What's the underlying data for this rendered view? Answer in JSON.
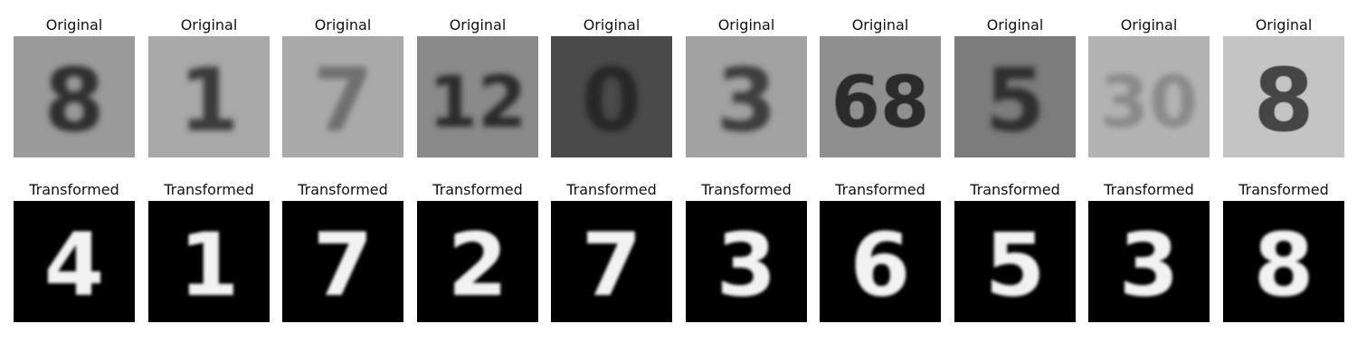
{
  "rows": [
    {
      "title": "Original",
      "cells": [
        {
          "glyph": "8",
          "bg": "#9a9a9a",
          "fg": "#2e2e2e",
          "style": "blur"
        },
        {
          "glyph": "1",
          "bg": "#a8a8a8",
          "fg": "#3a3a3a",
          "style": "blur"
        },
        {
          "glyph": "7",
          "bg": "#a9a9a9",
          "fg": "#707070",
          "style": "blur"
        },
        {
          "glyph": "12",
          "bg": "#8a8a8a",
          "fg": "#2a2a2a",
          "style": "blur"
        },
        {
          "glyph": "0",
          "bg": "#4a4a4a",
          "fg": "#262626",
          "style": "blur"
        },
        {
          "glyph": "3",
          "bg": "#a2a2a2",
          "fg": "#3c3c3c",
          "style": "blur"
        },
        {
          "glyph": "68",
          "bg": "#8f8f8f",
          "fg": "#2c2c2c",
          "style": "sharp"
        },
        {
          "glyph": "5",
          "bg": "#7c7c7c",
          "fg": "#2f2f2f",
          "style": "blur"
        },
        {
          "glyph": "30",
          "bg": "#b3b3b3",
          "fg": "#8a8a8a",
          "style": "blur"
        },
        {
          "glyph": "8",
          "bg": "#c4c4c4",
          "fg": "#444444",
          "style": "sharp"
        }
      ]
    },
    {
      "title": "Transformed",
      "cells": [
        {
          "glyph": "4",
          "bg": "#000000",
          "fg": "#f2f2f2",
          "style": "mnist"
        },
        {
          "glyph": "1",
          "bg": "#000000",
          "fg": "#f2f2f2",
          "style": "mnist"
        },
        {
          "glyph": "7",
          "bg": "#000000",
          "fg": "#f2f2f2",
          "style": "mnist"
        },
        {
          "glyph": "2",
          "bg": "#000000",
          "fg": "#f2f2f2",
          "style": "mnist"
        },
        {
          "glyph": "7",
          "bg": "#000000",
          "fg": "#f2f2f2",
          "style": "mnist"
        },
        {
          "glyph": "3",
          "bg": "#000000",
          "fg": "#f2f2f2",
          "style": "mnist"
        },
        {
          "glyph": "6",
          "bg": "#000000",
          "fg": "#f2f2f2",
          "style": "mnist"
        },
        {
          "glyph": "5",
          "bg": "#000000",
          "fg": "#f2f2f2",
          "style": "mnist"
        },
        {
          "glyph": "3",
          "bg": "#000000",
          "fg": "#f2f2f2",
          "style": "mnist"
        },
        {
          "glyph": "8",
          "bg": "#000000",
          "fg": "#f2f2f2",
          "style": "mnist"
        }
      ]
    }
  ]
}
